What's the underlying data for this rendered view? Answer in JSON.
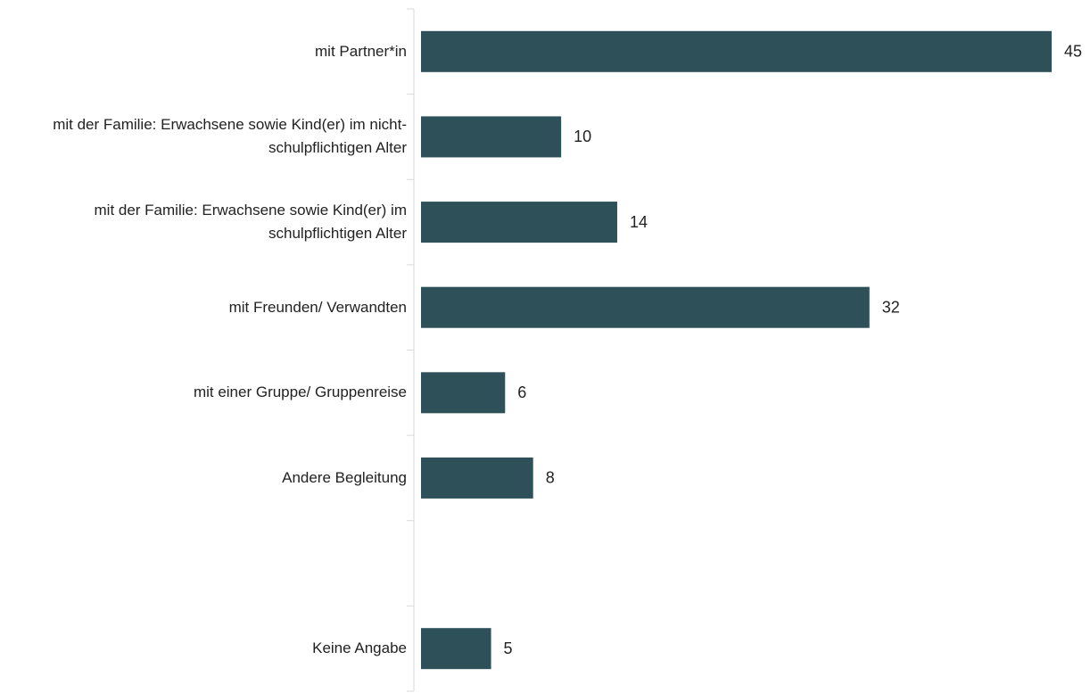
{
  "chart_data": {
    "type": "barh",
    "categories": [
      "mit Partner*in",
      "mit der Familie: Erwachsene sowie Kind(er) im nicht-schulpflichtigen Alter",
      "mit der Familie: Erwachsene sowie Kind(er) im schulpflichtigen Alter",
      "mit Freunden/ Verwandten",
      "mit einer Gruppe/ Gruppenreise",
      "Andere Begleitung",
      null,
      "Keine Angabe"
    ],
    "values": [
      45,
      10,
      14,
      32,
      6,
      8,
      null,
      5
    ],
    "color": "#2e5159",
    "xlim": [
      0,
      45
    ]
  }
}
